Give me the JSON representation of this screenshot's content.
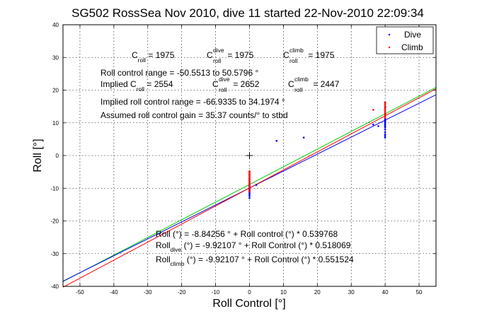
{
  "chart_data": {
    "type": "scatter",
    "title": "SG502 RossSea Nov 2010, dive 11 started 22-Nov-2010 22:09:34",
    "xlabel": "Roll Control [°]",
    "ylabel": "Roll [°]",
    "xlim": [
      -55,
      55
    ],
    "ylim": [
      -40,
      40
    ],
    "xticks": [
      -50,
      -40,
      -30,
      -20,
      -10,
      0,
      10,
      20,
      30,
      40,
      50
    ],
    "yticks": [
      -40,
      -30,
      -20,
      -10,
      0,
      10,
      20,
      30,
      40
    ],
    "grid": true,
    "legend": {
      "position": "top-right",
      "entries": [
        {
          "label": "Dive",
          "color": "#0000ff"
        },
        {
          "label": "Climb",
          "color": "#ff0000"
        }
      ]
    },
    "fit_lines": [
      {
        "color": "#00cc00",
        "intercept": -8.84256,
        "slope": 0.539768
      },
      {
        "color": "#0000ff",
        "intercept": -9.92107,
        "slope": 0.518069
      },
      {
        "color": "#ff0000",
        "intercept": -9.92107,
        "slope": 0.551524
      }
    ],
    "center_marker": {
      "x": 0,
      "y": 0,
      "color": "#000000"
    },
    "series": [
      {
        "name": "Dive",
        "color": "#0000ff",
        "points": [
          [
            0,
            -8.2
          ],
          [
            0,
            -8.6
          ],
          [
            0,
            -9.0
          ],
          [
            0,
            -9.3
          ],
          [
            0,
            -9.6
          ],
          [
            0,
            -9.9
          ],
          [
            0,
            -10.1
          ],
          [
            0,
            -10.3
          ],
          [
            0,
            -10.5
          ],
          [
            0,
            -10.7
          ],
          [
            0,
            -10.9
          ],
          [
            0,
            -11.1
          ],
          [
            0,
            -11.3
          ],
          [
            0,
            -11.6
          ],
          [
            0,
            -12.0
          ],
          [
            0,
            -12.4
          ],
          [
            0,
            -13.0
          ],
          [
            0,
            -9.4
          ],
          [
            0,
            -10.0
          ],
          [
            0,
            -10.8
          ],
          [
            0,
            -7.5
          ],
          [
            0,
            -8.0
          ],
          [
            40,
            5.5
          ],
          [
            40,
            6.5
          ],
          [
            40,
            7.2
          ],
          [
            40,
            8.0
          ],
          [
            40,
            8.6
          ],
          [
            40,
            9.0
          ],
          [
            40,
            9.4
          ],
          [
            40,
            9.8
          ],
          [
            40,
            10.1
          ],
          [
            40,
            10.4
          ],
          [
            40,
            10.7
          ],
          [
            40,
            11.0
          ],
          [
            40,
            11.4
          ],
          [
            40,
            12.0
          ],
          [
            40,
            6.0
          ],
          [
            2,
            -9.0
          ],
          [
            8,
            4.5
          ],
          [
            16,
            5.5
          ],
          [
            36.5,
            9.5
          ],
          [
            38,
            9.0
          ]
        ]
      },
      {
        "name": "Climb",
        "color": "#ff0000",
        "points": [
          [
            0,
            -5.0
          ],
          [
            0,
            -5.3
          ],
          [
            0,
            -5.6
          ],
          [
            0,
            -5.9
          ],
          [
            0,
            -6.2
          ],
          [
            0,
            -6.5
          ],
          [
            0,
            -6.8
          ],
          [
            0,
            -7.1
          ],
          [
            0,
            -7.3
          ],
          [
            0,
            -7.5
          ],
          [
            0,
            -7.7
          ],
          [
            0,
            -8.0
          ],
          [
            0,
            -8.3
          ],
          [
            0,
            -8.6
          ],
          [
            0,
            -9.0
          ],
          [
            0,
            -9.5
          ],
          [
            0,
            -10.0
          ],
          [
            0,
            -10.5
          ],
          [
            0,
            -11.0
          ],
          [
            0,
            -4.8
          ],
          [
            0,
            -6.0
          ],
          [
            0,
            -7.0
          ],
          [
            40,
            11.5
          ],
          [
            40,
            12.0
          ],
          [
            40,
            12.5
          ],
          [
            40,
            13.0
          ],
          [
            40,
            13.5
          ],
          [
            40,
            14.0
          ],
          [
            40,
            14.5
          ],
          [
            40,
            15.0
          ],
          [
            40,
            15.5
          ],
          [
            40,
            16.0
          ],
          [
            40,
            16.3
          ],
          [
            40,
            12.8
          ],
          [
            40,
            14.8
          ],
          [
            36.5,
            14.0
          ]
        ]
      }
    ]
  },
  "annotations": {
    "line1": [
      {
        "main": "C",
        "sub": "roll",
        "rest": " = 1975"
      },
      {
        "main": "C",
        "sup": "dive",
        "sub": "roll",
        "rest": " = 1975"
      },
      {
        "main": "C",
        "sup": "climb",
        "sub": "roll",
        "rest": " = 1975"
      }
    ],
    "line2": "Roll control range = -50.5513 to 50.5796 °",
    "line3": [
      {
        "main": "Implied C",
        "sub": "roll",
        "rest": " = 2554"
      },
      {
        "main": "C",
        "sup": "dive",
        "sub": "roll",
        "rest": " = 2652"
      },
      {
        "main": "C",
        "sup": "climb",
        "sub": "roll",
        "rest": " = 2447"
      }
    ],
    "line4": "Implied roll control range = -66.9335 to 34.1974 °",
    "line5": "Assumed roll control gain = 35.37 counts/° to stbd",
    "fit1": "Roll (°) = -8.84256 ° + Roll control (°) * 0.539768",
    "fit2_main": "Roll",
    "fit2_sub": "dive",
    "fit2_rest": " (°) = -9.92107 ° + Roll Control (°) * 0.518069",
    "fit3_main": "Roll",
    "fit3_sub": "climb",
    "fit3_rest": " (°) = -9.92107 ° + Roll Control (°) * 0.551524"
  }
}
